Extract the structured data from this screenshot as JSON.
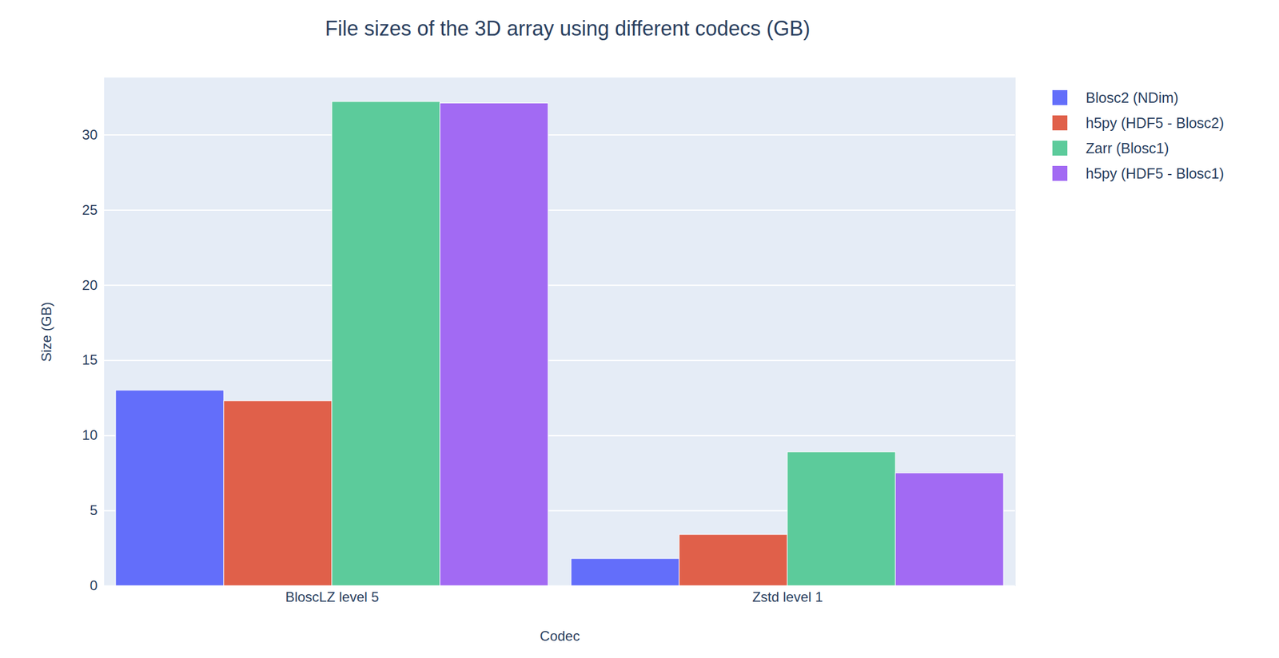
{
  "chart_data": {
    "type": "bar",
    "title": "File sizes of the 3D array using different codecs (GB)",
    "x_label": "Codec",
    "y_label": "Size (GB)",
    "categories": [
      "BloscLZ level 5",
      "Zstd level 1"
    ],
    "series": [
      {
        "name": "Blosc2 (NDim)",
        "color": "#636efa",
        "values": [
          13.0,
          1.8
        ]
      },
      {
        "name": "h5py (HDF5 - Blosc2)",
        "color": "#e0604a",
        "values": [
          12.3,
          3.4
        ]
      },
      {
        "name": "Zarr (Blosc1)",
        "color": "#5ccb9b",
        "values": [
          32.2,
          8.9
        ]
      },
      {
        "name": "h5py (HDF5 - Blosc1)",
        "color": "#a26af3",
        "values": [
          32.1,
          7.5
        ]
      }
    ],
    "ylim": [
      0,
      33.8
    ],
    "yticks": [
      0,
      5,
      10,
      15,
      20,
      25,
      30
    ],
    "grid": true,
    "legend": "right"
  }
}
